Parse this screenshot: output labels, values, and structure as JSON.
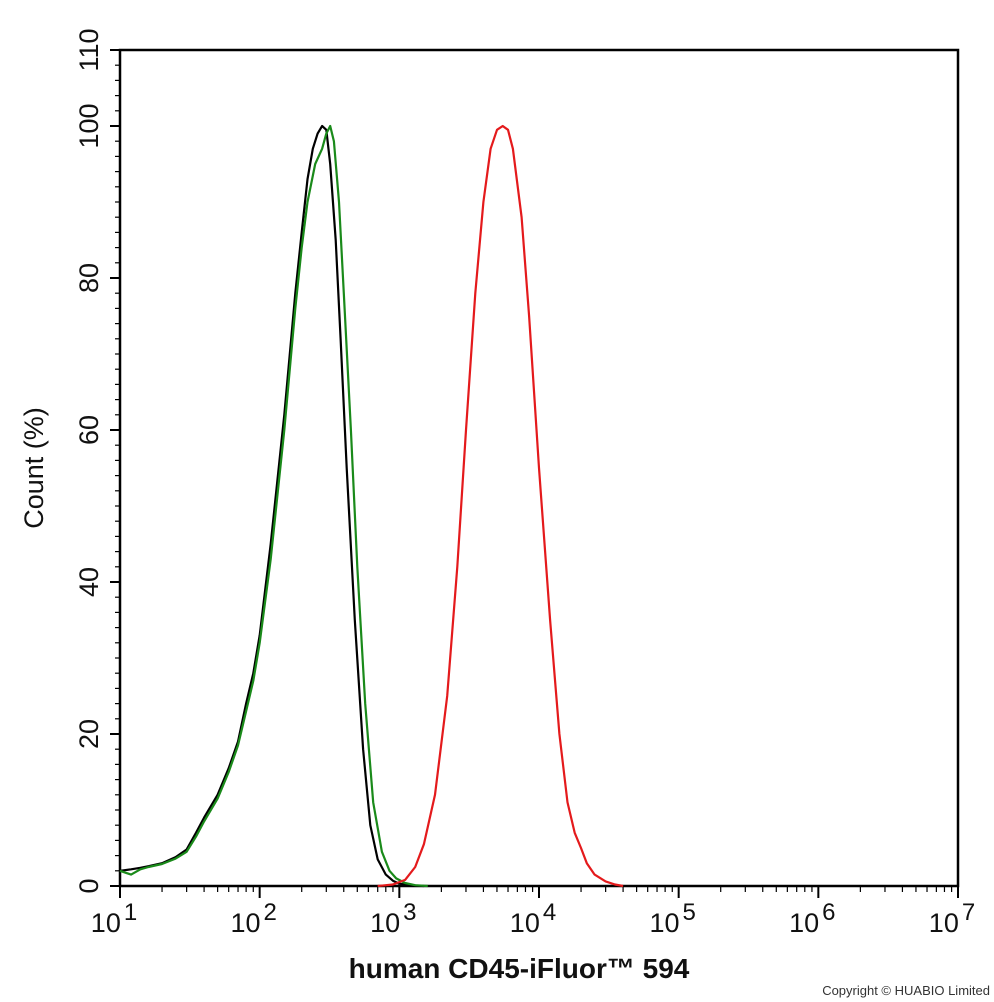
{
  "chart_data": {
    "type": "line",
    "title": "",
    "xlabel": "human CD45-iFluor™ 594",
    "ylabel": "Count  (%)",
    "x_scale": "log",
    "xlim": [
      10,
      10000000
    ],
    "ylim": [
      0,
      110
    ],
    "x_ticks": [
      {
        "value": 10,
        "base": "10",
        "exp": "1"
      },
      {
        "value": 100,
        "base": "10",
        "exp": "2"
      },
      {
        "value": 1000,
        "base": "10",
        "exp": "3"
      },
      {
        "value": 10000,
        "base": "10",
        "exp": "4"
      },
      {
        "value": 100000,
        "base": "10",
        "exp": "5"
      },
      {
        "value": 1000000,
        "base": "10",
        "exp": "6"
      },
      {
        "value": 10000000,
        "base": "10",
        "exp": "7"
      }
    ],
    "y_ticks": [
      0,
      20,
      40,
      60,
      80,
      100,
      110
    ],
    "grid": false,
    "legend": "none",
    "series": [
      {
        "color": "#000000",
        "points": [
          [
            10,
            2
          ],
          [
            12,
            2.2
          ],
          [
            14,
            2.4
          ],
          [
            16,
            2.6
          ],
          [
            20,
            3
          ],
          [
            25,
            3.8
          ],
          [
            30,
            4.8
          ],
          [
            35,
            7
          ],
          [
            40,
            9
          ],
          [
            50,
            12
          ],
          [
            60,
            15.5
          ],
          [
            70,
            19
          ],
          [
            80,
            24
          ],
          [
            90,
            28
          ],
          [
            100,
            33
          ],
          [
            120,
            45
          ],
          [
            150,
            62
          ],
          [
            180,
            78
          ],
          [
            200,
            86
          ],
          [
            220,
            93
          ],
          [
            240,
            97
          ],
          [
            260,
            99
          ],
          [
            280,
            100
          ],
          [
            300,
            99.5
          ],
          [
            320,
            95
          ],
          [
            350,
            85
          ],
          [
            380,
            72
          ],
          [
            420,
            55
          ],
          [
            480,
            35
          ],
          [
            550,
            18
          ],
          [
            620,
            8
          ],
          [
            700,
            3.5
          ],
          [
            800,
            1.5
          ],
          [
            900,
            0.7
          ],
          [
            1000,
            0.3
          ],
          [
            1200,
            0.1
          ],
          [
            1500,
            0
          ]
        ]
      },
      {
        "color": "#1a8a1a",
        "points": [
          [
            10,
            2
          ],
          [
            12,
            1.5
          ],
          [
            14,
            2.2
          ],
          [
            16,
            2.5
          ],
          [
            20,
            2.9
          ],
          [
            25,
            3.6
          ],
          [
            30,
            4.5
          ],
          [
            35,
            6.5
          ],
          [
            40,
            8.5
          ],
          [
            50,
            11.5
          ],
          [
            60,
            15
          ],
          [
            70,
            18.5
          ],
          [
            80,
            23
          ],
          [
            90,
            27
          ],
          [
            100,
            32
          ],
          [
            120,
            43
          ],
          [
            150,
            60
          ],
          [
            180,
            76
          ],
          [
            200,
            84
          ],
          [
            220,
            90
          ],
          [
            250,
            95
          ],
          [
            280,
            97
          ],
          [
            300,
            99
          ],
          [
            320,
            100
          ],
          [
            340,
            98
          ],
          [
            370,
            90
          ],
          [
            400,
            78
          ],
          [
            450,
            60
          ],
          [
            500,
            42
          ],
          [
            570,
            24
          ],
          [
            650,
            11
          ],
          [
            750,
            4.5
          ],
          [
            850,
            2
          ],
          [
            950,
            1
          ],
          [
            1100,
            0.4
          ],
          [
            1300,
            0.1
          ],
          [
            1600,
            0
          ]
        ]
      },
      {
        "color": "#e41a1c",
        "points": [
          [
            700,
            0
          ],
          [
            900,
            0.2
          ],
          [
            1100,
            0.8
          ],
          [
            1300,
            2.5
          ],
          [
            1500,
            5.5
          ],
          [
            1800,
            12
          ],
          [
            2200,
            25
          ],
          [
            2600,
            42
          ],
          [
            3000,
            60
          ],
          [
            3500,
            78
          ],
          [
            4000,
            90
          ],
          [
            4500,
            97
          ],
          [
            5000,
            99.5
          ],
          [
            5500,
            100
          ],
          [
            6000,
            99.5
          ],
          [
            6500,
            97
          ],
          [
            7500,
            88
          ],
          [
            8500,
            75
          ],
          [
            10000,
            55
          ],
          [
            12000,
            35
          ],
          [
            14000,
            20
          ],
          [
            16000,
            11
          ],
          [
            18000,
            7
          ],
          [
            20000,
            5
          ],
          [
            22000,
            3
          ],
          [
            25000,
            1.5
          ],
          [
            30000,
            0.6
          ],
          [
            35000,
            0.2
          ],
          [
            40000,
            0
          ]
        ]
      }
    ]
  },
  "copyright": "Copyright © HUABIO Limited"
}
